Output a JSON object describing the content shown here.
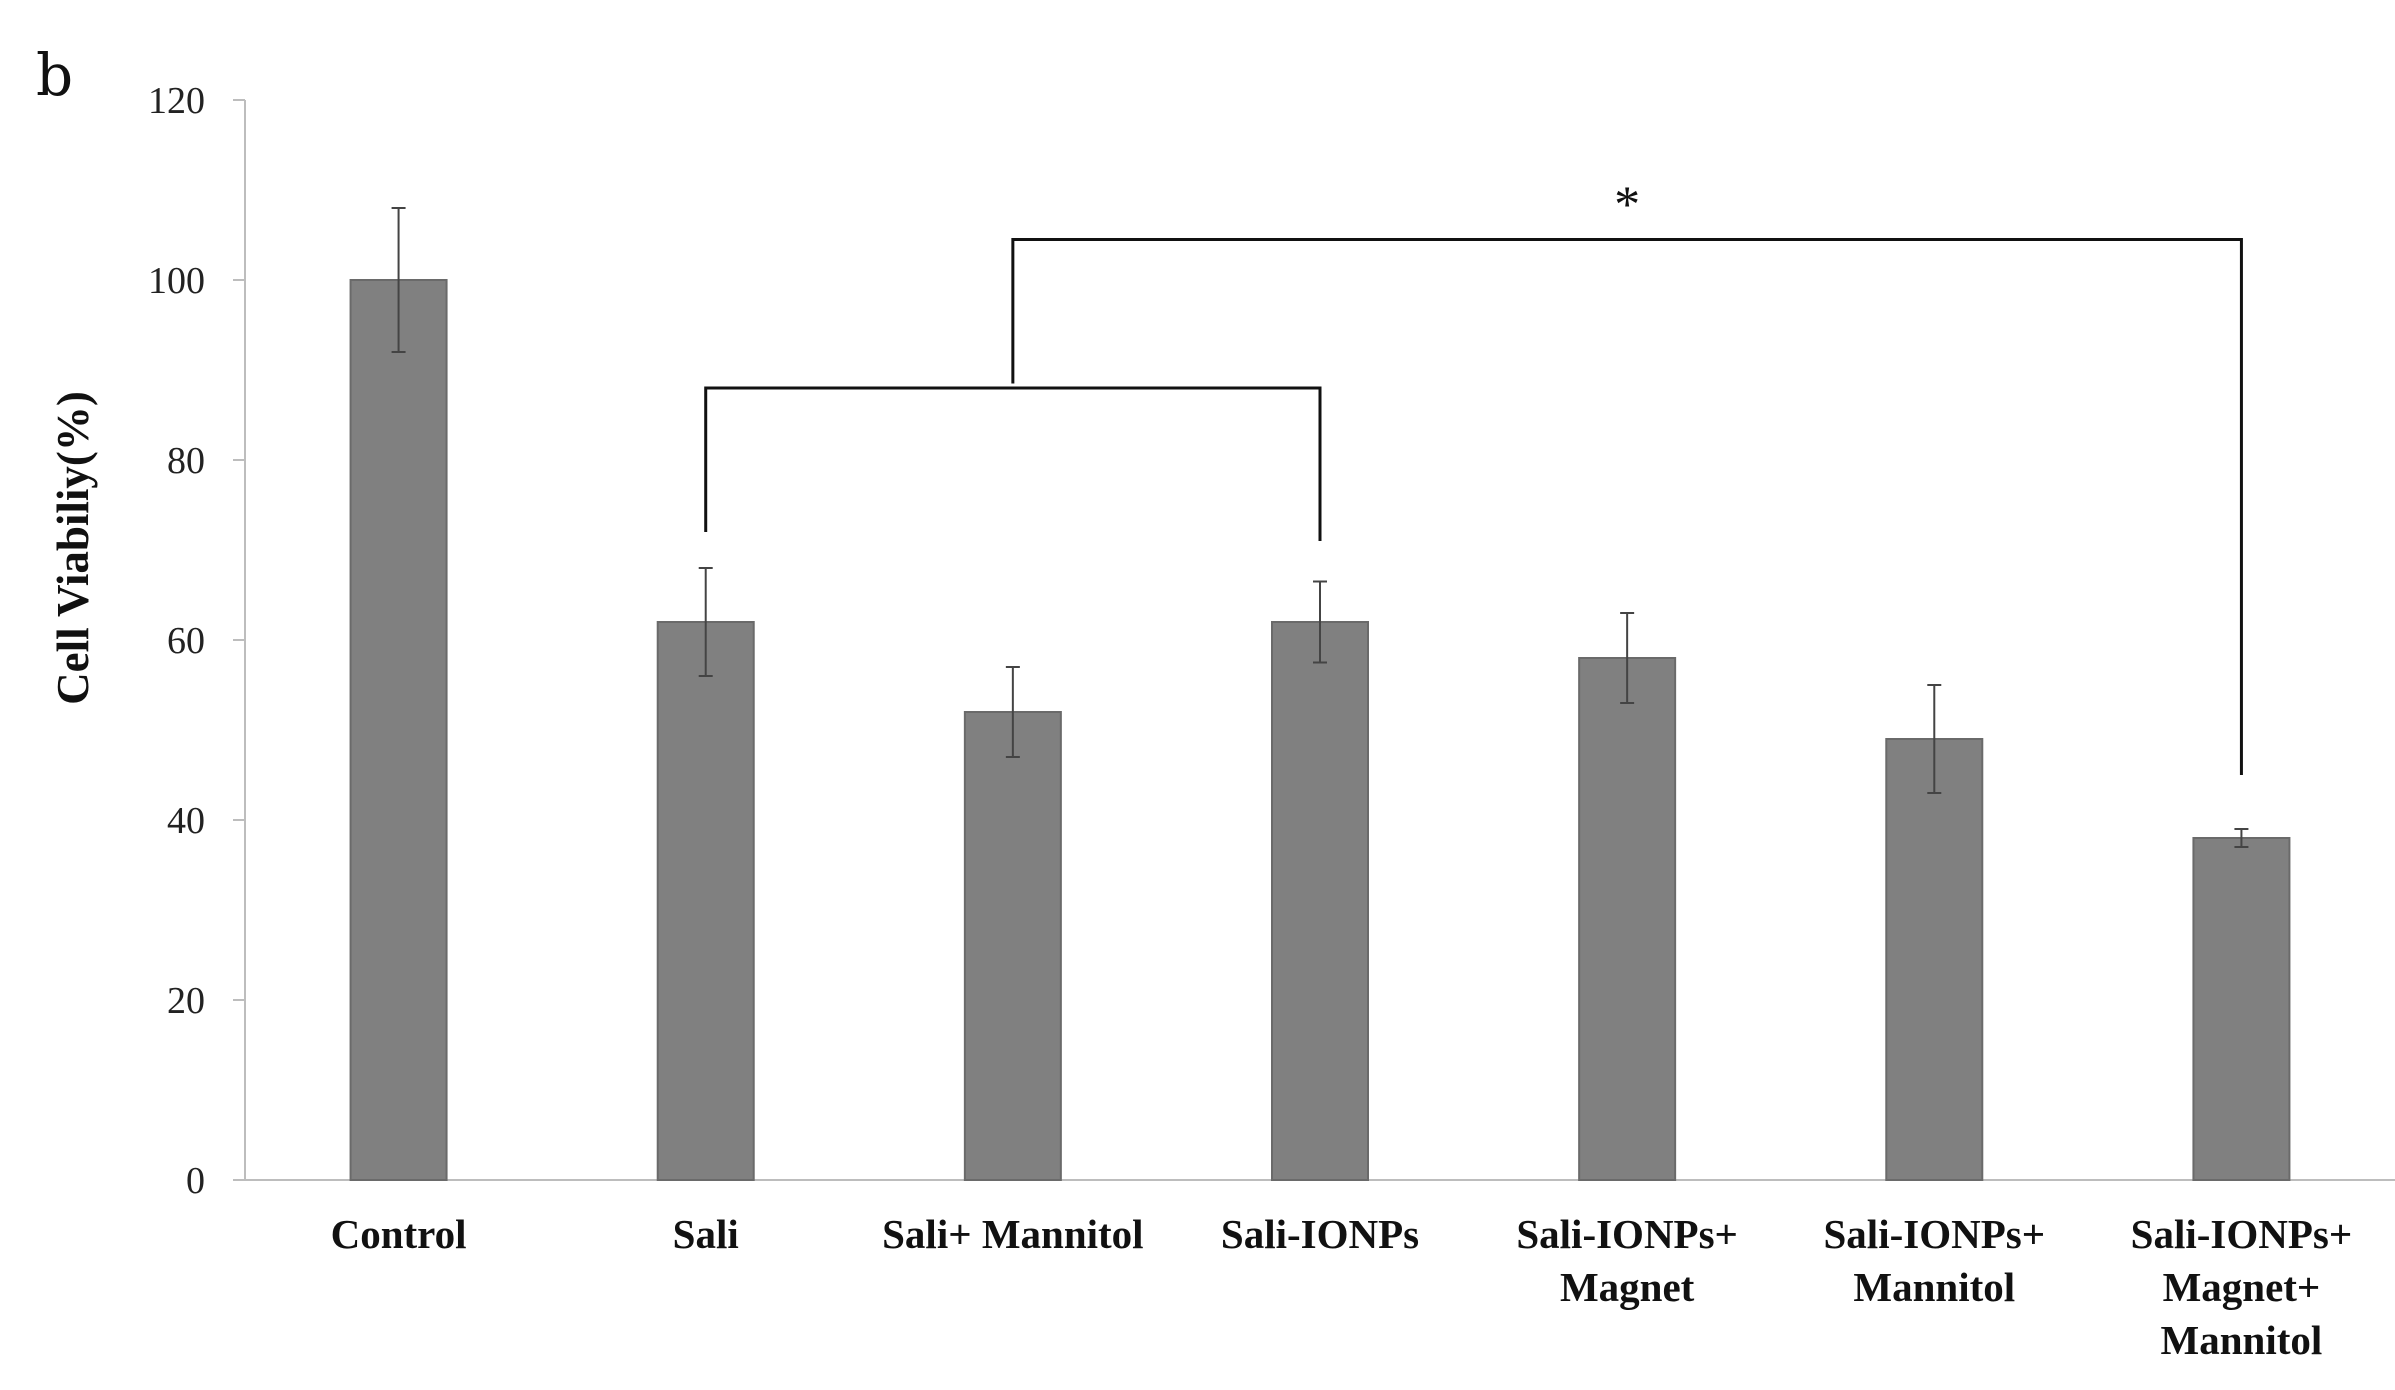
{
  "panel_label": "b",
  "chart_data": {
    "type": "bar",
    "title": "",
    "xlabel": "",
    "ylabel": "Cell Viabiliy(%)",
    "ylim": [
      0,
      120
    ],
    "yticks": [
      0,
      20,
      40,
      60,
      80,
      100,
      120
    ],
    "grid": false,
    "legend": "none",
    "bar_color": "#808080",
    "categories": [
      "Control",
      "Sali",
      "Sali+ Mannitol",
      "Sali-IONPs",
      "Sali-IONPs+ Magnet",
      "Sali-IONPs+ Mannitol",
      "Sali-IONPs+ Magnet+ Mannitol"
    ],
    "category_label_lines": [
      [
        "Control"
      ],
      [
        "Sali"
      ],
      [
        "Sali+  Mannitol"
      ],
      [
        "Sali-IONPs"
      ],
      [
        "Sali-IONPs+",
        "Magnet"
      ],
      [
        "Sali-IONPs+",
        "Mannitol"
      ],
      [
        "Sali-IONPs+",
        "Magnet+",
        "Mannitol"
      ]
    ],
    "values": [
      100,
      62,
      52,
      62,
      58,
      49,
      38
    ],
    "errors": [
      8,
      6,
      5,
      4.5,
      5,
      6,
      1
    ],
    "annotations": [
      {
        "type": "significance-bracket",
        "label": "",
        "from": "Sali",
        "to": "Sali-IONPs",
        "bracket_y": 88,
        "left_drop_to": 72,
        "right_drop_to": 71
      },
      {
        "type": "significance-bracket",
        "label": "*",
        "from_bracket": 0,
        "to": "Sali-IONPs+ Magnet+ Mannitol",
        "bracket_y": 104.5,
        "left_drop_to": 88.5,
        "right_drop_to": 45
      }
    ]
  }
}
